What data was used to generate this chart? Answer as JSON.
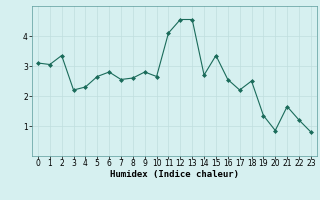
{
  "x": [
    0,
    1,
    2,
    3,
    4,
    5,
    6,
    7,
    8,
    9,
    10,
    11,
    12,
    13,
    14,
    15,
    16,
    17,
    18,
    19,
    20,
    21,
    22,
    23
  ],
  "y": [
    3.1,
    3.05,
    3.35,
    2.2,
    2.3,
    2.65,
    2.8,
    2.55,
    2.6,
    2.8,
    2.65,
    4.1,
    4.55,
    4.55,
    2.7,
    3.35,
    2.55,
    2.2,
    2.5,
    1.35,
    0.85,
    1.65,
    1.2,
    0.8
  ],
  "line_color": "#1a6b5a",
  "marker": "D",
  "marker_size": 2,
  "bg_color": "#d6f0f0",
  "grid_color": "#c0dede",
  "xlabel": "Humidex (Indice chaleur)",
  "ylim": [
    0,
    5
  ],
  "xlim": [
    -0.5,
    23.5
  ],
  "yticks": [
    1,
    2,
    3,
    4
  ],
  "xticks": [
    0,
    1,
    2,
    3,
    4,
    5,
    6,
    7,
    8,
    9,
    10,
    11,
    12,
    13,
    14,
    15,
    16,
    17,
    18,
    19,
    20,
    21,
    22,
    23
  ],
  "label_fontsize": 6.5,
  "tick_fontsize": 5.5
}
